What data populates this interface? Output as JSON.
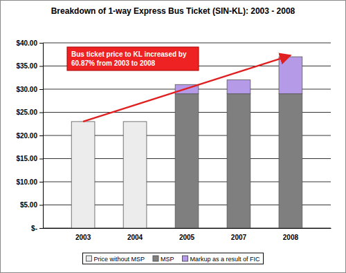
{
  "chart_data": {
    "type": "bar",
    "title": "Breakdown of 1-way Express Bus Ticket (SIN-KL): 2003 - 2008",
    "categories": [
      "2003",
      "2004",
      "2005",
      "2007",
      "2008"
    ],
    "stacked": true,
    "series": [
      {
        "name": "Price without MSP",
        "color": "#ececec",
        "values": [
          23,
          23,
          null,
          null,
          null
        ]
      },
      {
        "name": "MSP",
        "color": "#7f7f7f",
        "values": [
          null,
          null,
          29,
          29,
          29
        ]
      },
      {
        "name": "Markup as a result of FIC",
        "color": "#b59ae8",
        "values": [
          null,
          null,
          2,
          3,
          8
        ]
      }
    ],
    "ylim": [
      0,
      40
    ],
    "yticks": [
      {
        "value": 0,
        "label": "$-"
      },
      {
        "value": 5,
        "label": "$5.00"
      },
      {
        "value": 10,
        "label": "$10.00"
      },
      {
        "value": 15,
        "label": "$15.00"
      },
      {
        "value": 20,
        "label": "$20.00"
      },
      {
        "value": 25,
        "label": "$25.00"
      },
      {
        "value": 30,
        "label": "$30.00"
      },
      {
        "value": 35,
        "label": "$35.00"
      },
      {
        "value": 40,
        "label": "$40.00"
      }
    ],
    "grid": true,
    "legend": "bottom",
    "annotation": [
      "Bus ticket price to KL increased by",
      "60.87% from 2003 to 2008"
    ]
  }
}
